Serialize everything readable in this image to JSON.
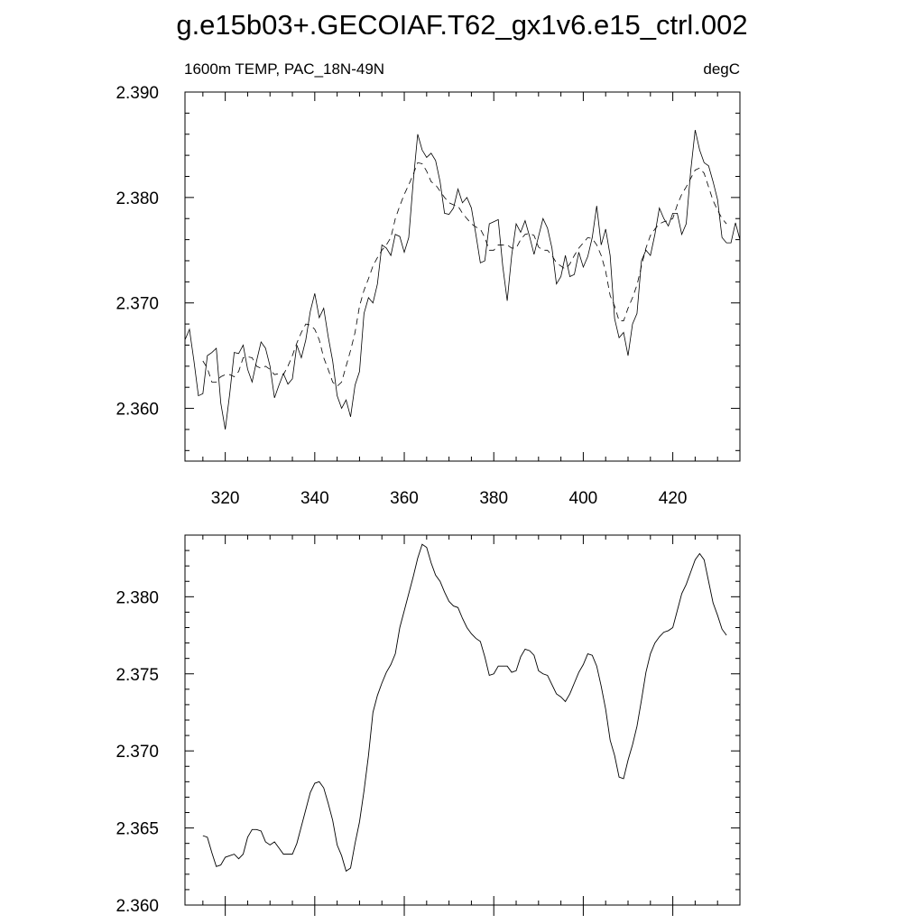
{
  "title": "g.e15b03+.GECOIAF.T62_gx1v6.e15_ctrl.002",
  "chart_data": [
    {
      "type": "line",
      "left_label": "1600m TEMP, PAC_18N-49N",
      "right_label": "degC",
      "xlim": [
        311,
        435
      ],
      "ylim": [
        2.355,
        2.39
      ],
      "x_ticks": [
        320,
        340,
        360,
        380,
        400,
        420
      ],
      "y_ticks": [
        "2.360",
        "2.370",
        "2.380",
        "2.390"
      ],
      "series": [
        {
          "style": "solid-thin",
          "x": [
            311,
            312,
            313,
            314,
            315,
            316,
            317,
            318,
            319,
            320,
            321,
            322,
            323,
            324,
            325,
            326,
            327,
            328,
            329,
            330,
            331,
            332,
            333,
            334,
            335,
            336,
            337,
            338,
            339,
            340,
            341,
            342,
            343,
            344,
            345,
            346,
            347,
            348,
            349,
            350,
            351,
            352,
            353,
            354,
            355,
            356,
            357,
            358,
            359,
            360,
            361,
            362,
            363,
            364,
            365,
            366,
            367,
            368,
            369,
            370,
            371,
            372,
            373,
            374,
            375,
            376,
            377,
            378,
            379,
            380,
            381,
            382,
            383,
            384,
            385,
            386,
            387,
            388,
            389,
            390,
            391,
            392,
            393,
            394,
            395,
            396,
            397,
            398,
            399,
            400,
            401,
            402,
            403,
            404,
            405,
            406,
            407,
            408,
            409,
            410,
            411,
            412,
            413,
            414,
            415,
            416,
            417,
            418,
            419,
            420,
            421,
            422,
            423,
            424,
            425,
            426,
            427,
            428,
            429,
            430,
            431,
            432,
            433,
            434,
            435
          ],
          "y": [
            2.3665,
            2.3675,
            2.3645,
            2.3612,
            2.3614,
            2.365,
            2.3653,
            2.3657,
            2.3605,
            2.358,
            2.3614,
            2.3653,
            2.3652,
            2.366,
            2.3637,
            2.3625,
            2.3645,
            2.3663,
            2.3657,
            2.364,
            2.361,
            2.3622,
            2.3633,
            2.3623,
            2.3628,
            2.366,
            2.3648,
            2.3665,
            2.3692,
            2.3709,
            2.3686,
            2.3695,
            2.3668,
            2.3645,
            2.3612,
            2.36,
            2.3608,
            2.3592,
            2.3622,
            2.3635,
            2.369,
            2.3705,
            2.37,
            2.3718,
            2.3755,
            2.3752,
            2.3745,
            2.3765,
            2.3763,
            2.3748,
            2.3762,
            2.3815,
            2.386,
            2.3845,
            2.3838,
            2.3842,
            2.3835,
            2.3815,
            2.3785,
            2.3784,
            2.379,
            2.3808,
            2.3795,
            2.38,
            2.379,
            2.3765,
            2.3738,
            2.374,
            2.3775,
            2.3777,
            2.3779,
            2.3735,
            2.3702,
            2.3745,
            2.3775,
            2.3767,
            2.3778,
            2.3763,
            2.3746,
            2.3763,
            2.378,
            2.3771,
            2.3752,
            2.3718,
            2.3725,
            2.3745,
            2.3725,
            2.3727,
            2.3748,
            2.3734,
            2.3744,
            2.3762,
            2.3792,
            2.3755,
            2.377,
            2.3745,
            2.3685,
            2.3667,
            2.3672,
            2.365,
            2.368,
            2.369,
            2.374,
            2.375,
            2.3745,
            2.3765,
            2.379,
            2.378,
            2.3773,
            2.3785,
            2.3785,
            2.3765,
            2.3775,
            2.3825,
            2.3864,
            2.3845,
            2.3833,
            2.383,
            2.3815,
            2.3798,
            2.3762,
            2.3757,
            2.3757,
            2.3776,
            2.376
          ]
        },
        {
          "style": "dashed",
          "x": [
            315,
            316,
            317,
            318,
            319,
            320,
            321,
            322,
            323,
            324,
            325,
            326,
            327,
            328,
            329,
            330,
            331,
            332,
            333,
            334,
            335,
            336,
            337,
            338,
            339,
            340,
            341,
            342,
            343,
            344,
            345,
            346,
            347,
            348,
            349,
            350,
            351,
            352,
            353,
            354,
            355,
            356,
            357,
            358,
            359,
            360,
            361,
            362,
            363,
            364,
            365,
            366,
            367,
            368,
            369,
            370,
            371,
            372,
            373,
            374,
            375,
            376,
            377,
            378,
            379,
            380,
            381,
            382,
            383,
            384,
            385,
            386,
            387,
            388,
            389,
            390,
            391,
            392,
            393,
            394,
            395,
            396,
            397,
            398,
            399,
            400,
            401,
            402,
            403,
            404,
            405,
            406,
            407,
            408,
            409,
            410,
            411,
            412,
            413,
            414,
            415,
            416,
            417,
            418,
            419,
            420,
            421,
            422,
            423,
            424,
            425,
            426,
            427,
            428,
            429,
            430,
            431,
            432
          ],
          "y": [
            2.3645,
            2.3638,
            2.3625,
            2.3625,
            2.363,
            2.3632,
            2.3632,
            2.363,
            2.3635,
            2.3648,
            2.3649,
            2.3648,
            2.364,
            2.3638,
            2.364,
            2.3637,
            2.3632,
            2.3633,
            2.3632,
            2.364,
            2.365,
            2.3662,
            2.3672,
            2.368,
            2.3679,
            2.3675,
            2.3665,
            2.3648,
            2.3637,
            2.3625,
            2.3621,
            2.3625,
            2.364,
            2.3655,
            2.3672,
            2.3697,
            2.3712,
            2.3723,
            2.3735,
            2.3743,
            2.375,
            2.3755,
            2.3762,
            2.378,
            2.3792,
            2.3803,
            2.3812,
            2.3822,
            2.3833,
            2.3832,
            2.3825,
            2.3815,
            2.3812,
            2.3806,
            2.38,
            2.3795,
            2.3793,
            2.3792,
            2.3785,
            2.378,
            2.3775,
            2.3772,
            2.377,
            2.3762,
            2.375,
            2.375,
            2.3755,
            2.3755,
            2.3755,
            2.3752,
            2.3752,
            2.376,
            2.3765,
            2.3766,
            2.3764,
            2.3753,
            2.375,
            2.375,
            2.3745,
            2.3738,
            2.3735,
            2.3732,
            2.3737,
            2.3745,
            2.3752,
            2.3757,
            2.3762,
            2.3761,
            2.3755,
            2.3745,
            2.373,
            2.3707,
            2.3697,
            2.3683,
            2.3683,
            2.3695,
            2.3705,
            2.3717,
            2.3735,
            2.3752,
            2.3764,
            2.377,
            2.3775,
            2.3777,
            2.3778,
            2.378,
            2.3793,
            2.3803,
            2.381,
            2.3818,
            2.3826,
            2.3828,
            2.3823,
            2.381,
            2.3797,
            2.3788,
            2.378,
            2.3775
          ]
        }
      ]
    },
    {
      "type": "line",
      "xlim": [
        311,
        435
      ],
      "ylim": [
        2.36,
        2.384
      ],
      "x_ticks": [
        320,
        340,
        360,
        380,
        400,
        420
      ],
      "y_ticks": [
        "2.360",
        "2.365",
        "2.370",
        "2.375",
        "2.380"
      ],
      "series": [
        {
          "style": "solid",
          "x": [
            315,
            316,
            317,
            318,
            319,
            320,
            321,
            322,
            323,
            324,
            325,
            326,
            327,
            328,
            329,
            330,
            331,
            332,
            333,
            334,
            335,
            336,
            337,
            338,
            339,
            340,
            341,
            342,
            343,
            344,
            345,
            346,
            347,
            348,
            349,
            350,
            351,
            352,
            353,
            354,
            355,
            356,
            357,
            358,
            359,
            360,
            361,
            362,
            363,
            364,
            365,
            366,
            367,
            368,
            369,
            370,
            371,
            372,
            373,
            374,
            375,
            376,
            377,
            378,
            379,
            380,
            381,
            382,
            383,
            384,
            385,
            386,
            387,
            388,
            389,
            390,
            391,
            392,
            393,
            394,
            395,
            396,
            397,
            398,
            399,
            400,
            401,
            402,
            403,
            404,
            405,
            406,
            407,
            408,
            409,
            410,
            411,
            412,
            413,
            414,
            415,
            416,
            417,
            418,
            419,
            420,
            421,
            422,
            423,
            424,
            425,
            426,
            427,
            428,
            429,
            430,
            431,
            432
          ],
          "y": [
            2.3645,
            2.3644,
            2.3634,
            2.3625,
            2.3626,
            2.3631,
            2.3632,
            2.3633,
            2.363,
            2.3633,
            2.3644,
            2.3649,
            2.3649,
            2.3648,
            2.3641,
            2.3639,
            2.3641,
            2.3637,
            2.3633,
            2.3633,
            2.3633,
            2.364,
            2.3651,
            2.3662,
            2.3673,
            2.3679,
            2.368,
            2.3676,
            2.3666,
            2.3655,
            2.3639,
            2.3632,
            2.3622,
            2.3624,
            2.364,
            2.3654,
            2.3674,
            2.3697,
            2.3725,
            2.3736,
            2.3744,
            2.3751,
            2.3756,
            2.3763,
            2.378,
            2.3791,
            2.3802,
            2.3813,
            2.3825,
            2.3834,
            2.3832,
            2.3822,
            2.3814,
            2.381,
            2.3803,
            2.3797,
            2.3794,
            2.3793,
            2.3786,
            2.378,
            2.3776,
            2.3773,
            2.3771,
            2.3761,
            2.3749,
            2.375,
            2.3755,
            2.3755,
            2.3755,
            2.3751,
            2.3752,
            2.3761,
            2.3766,
            2.3765,
            2.3762,
            2.3752,
            2.375,
            2.3749,
            2.3743,
            2.3737,
            2.3735,
            2.3732,
            2.3737,
            2.3744,
            2.3751,
            2.3756,
            2.3763,
            2.3762,
            2.3755,
            2.3742,
            2.3727,
            2.3707,
            2.3697,
            2.3683,
            2.3682,
            2.3694,
            2.3704,
            2.3716,
            2.3733,
            2.3751,
            2.3763,
            2.377,
            2.3774,
            2.3777,
            2.3778,
            2.378,
            2.3791,
            2.3802,
            2.3808,
            2.3816,
            2.3824,
            2.3828,
            2.3824,
            2.381,
            2.3796,
            2.3788,
            2.3779,
            2.3775
          ]
        }
      ]
    }
  ]
}
